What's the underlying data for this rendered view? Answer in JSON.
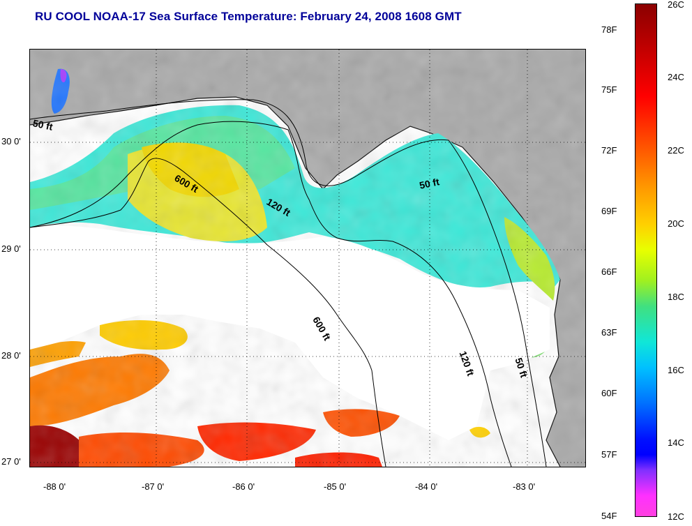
{
  "title": "RU COOL  NOAA-17  Sea Surface Temperature:  February 24, 2008 1608 GMT",
  "map": {
    "lat_labels": [
      "30 0'",
      "29 0'",
      "28 0'",
      "27 0'"
    ],
    "lon_labels": [
      "-88 0'",
      "-87 0'",
      "-86 0'",
      "-85 0'",
      "-84 0'",
      "-83 0'"
    ],
    "contour_labels": [
      "50 ft",
      "600 ft",
      "120 ft",
      "50 ft",
      "600 ft",
      "120 ft",
      "50 ft"
    ],
    "colors": {
      "land": "#a9a9a9",
      "cloud": "#ffffff",
      "grid": "#000000"
    }
  },
  "colorbar": {
    "fahrenheit_labels": [
      "78F",
      "75F",
      "72F",
      "69F",
      "66F",
      "63F",
      "60F",
      "57F",
      "54F"
    ],
    "celsius_labels": [
      "26C",
      "24C",
      "22C",
      "20C",
      "18C",
      "16C",
      "14C",
      "12C"
    ]
  }
}
